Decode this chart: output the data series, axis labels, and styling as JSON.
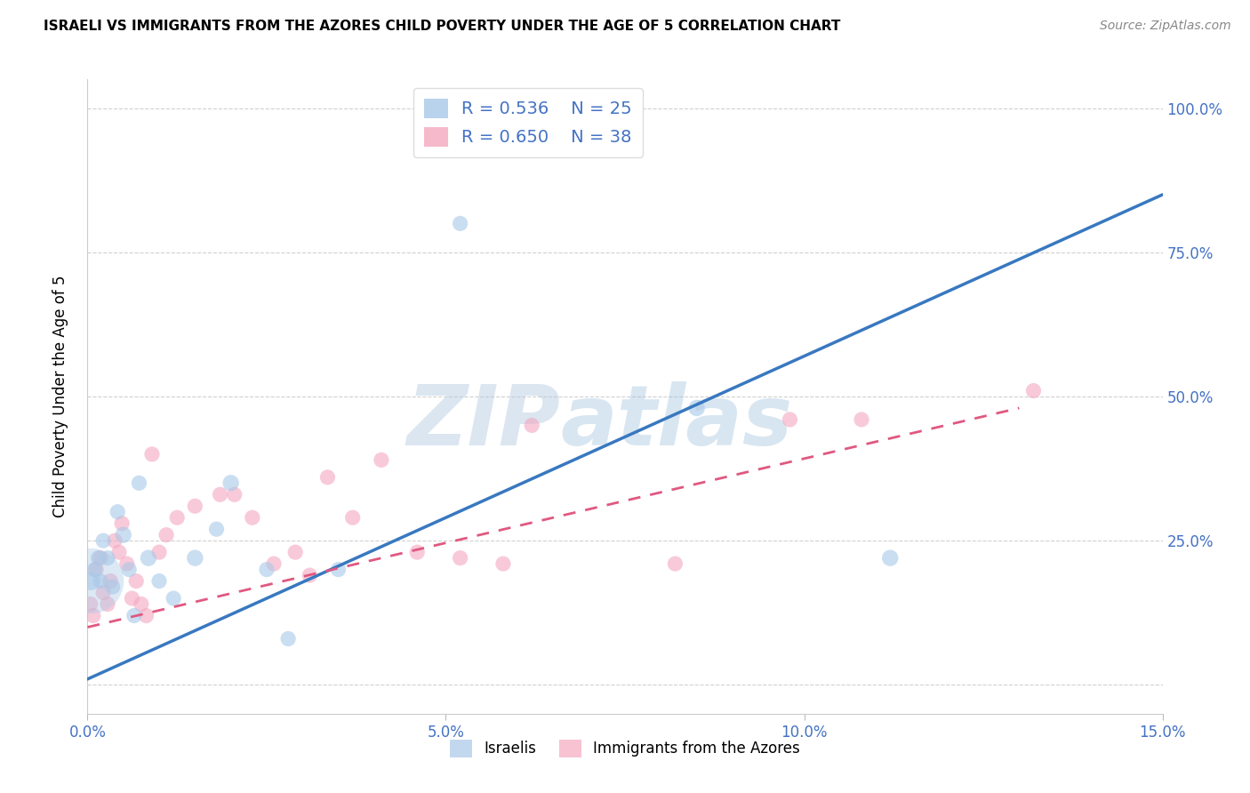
{
  "title": "ISRAELI VS IMMIGRANTS FROM THE AZORES CHILD POVERTY UNDER THE AGE OF 5 CORRELATION CHART",
  "source": "Source: ZipAtlas.com",
  "ylabel": "Child Poverty Under the Age of 5",
  "legend_label1": "Israelis",
  "legend_label2": "Immigrants from the Azores",
  "R1": 0.536,
  "N1": 25,
  "R2": 0.65,
  "N2": 38,
  "color_blue": "#a8c8e8",
  "color_pink": "#f4a8c0",
  "color_blue_line": "#3878c0",
  "color_pink_line": "#e05880",
  "watermark": "ZIPAtlas",
  "israelis_x": [
    0.05,
    0.1,
    0.15,
    0.18,
    0.22,
    0.28,
    0.35,
    0.42,
    0.5,
    0.58,
    0.65,
    0.72,
    0.85,
    1.0,
    1.2,
    1.5,
    1.8,
    2.0,
    2.5,
    2.8,
    3.5,
    5.2,
    8.5,
    11.2
  ],
  "israelis_y": [
    18,
    20,
    22,
    18,
    25,
    22,
    17,
    30,
    26,
    20,
    12,
    35,
    22,
    18,
    15,
    22,
    27,
    35,
    20,
    8,
    20,
    80,
    48,
    22
  ],
  "israelis_size_scale": [
    1.0,
    0.7,
    0.7,
    0.7,
    0.7,
    0.7,
    0.7,
    0.7,
    0.8,
    0.7,
    0.7,
    0.7,
    0.8,
    0.7,
    0.7,
    0.8,
    0.7,
    0.8,
    0.7,
    0.7,
    0.7,
    0.7,
    0.8,
    0.8
  ],
  "azores_x": [
    0.04,
    0.08,
    0.12,
    0.18,
    0.22,
    0.28,
    0.32,
    0.38,
    0.44,
    0.48,
    0.55,
    0.62,
    0.68,
    0.75,
    0.82,
    0.9,
    1.0,
    1.1,
    1.25,
    1.5,
    1.85,
    2.05,
    2.3,
    2.6,
    2.9,
    3.1,
    3.35,
    3.7,
    4.1,
    4.6,
    5.2,
    5.8,
    6.2,
    8.2,
    9.8,
    10.8,
    13.2
  ],
  "azores_y": [
    14,
    12,
    20,
    22,
    16,
    14,
    18,
    25,
    23,
    28,
    21,
    15,
    18,
    14,
    12,
    40,
    23,
    26,
    29,
    31,
    33,
    33,
    29,
    21,
    23,
    19,
    36,
    29,
    39,
    23,
    22,
    21,
    45,
    21,
    46,
    46,
    51
  ],
  "azores_size_scale": [
    0.7,
    0.7,
    0.7,
    0.7,
    0.7,
    0.7,
    0.7,
    0.7,
    0.7,
    0.7,
    0.7,
    0.7,
    0.7,
    0.7,
    0.7,
    0.7,
    0.7,
    0.7,
    0.7,
    0.7,
    0.7,
    0.7,
    0.7,
    0.7,
    0.7,
    0.7,
    0.7,
    0.7,
    0.7,
    0.7,
    0.7,
    0.7,
    0.7,
    0.7,
    0.7,
    0.7,
    0.7
  ],
  "big_cluster_x": 0.05,
  "big_cluster_y": 18,
  "xlim": [
    0,
    15
  ],
  "ylim": [
    -5,
    105
  ],
  "xticks": [
    0,
    5,
    10,
    15
  ],
  "xtick_labels": [
    "0.0%",
    "5.0%",
    "10.0%",
    "15.0%"
  ],
  "yticks": [
    0,
    25,
    50,
    75,
    100
  ],
  "ytick_labels_right": [
    "",
    "25.0%",
    "50.0%",
    "75.0%",
    "100.0%"
  ],
  "blue_line_x0": 0,
  "blue_line_x1": 15,
  "blue_line_y0": 1,
  "blue_line_y1": 85,
  "pink_line_x0": 0,
  "pink_line_x1": 13,
  "pink_line_y0": 10,
  "pink_line_y1": 48,
  "base_dot_size": 220,
  "background": "#ffffff",
  "grid_color": "#cccccc",
  "tick_color": "#4472c4",
  "title_fontsize": 11,
  "label_fontsize": 12,
  "legend_fontsize": 14
}
